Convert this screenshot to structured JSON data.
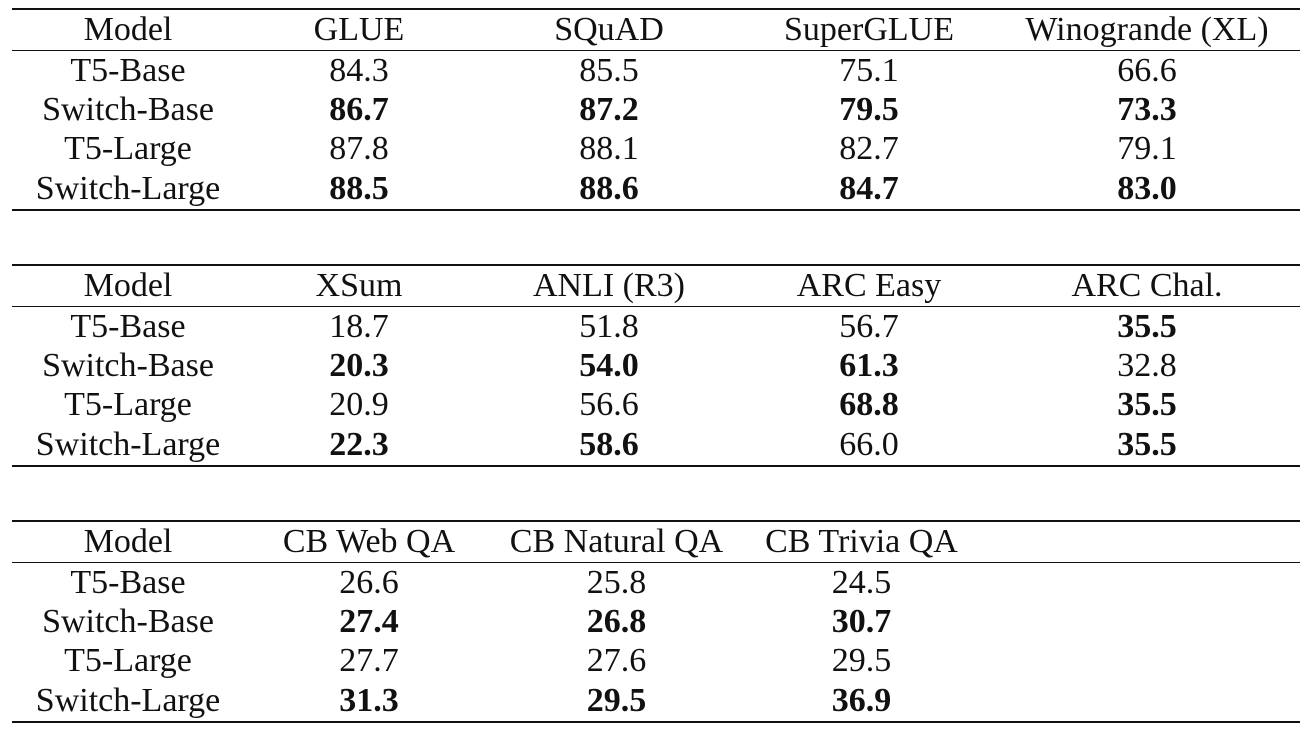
{
  "tables": [
    {
      "headers": [
        "Model",
        "GLUE",
        "SQuAD",
        "SuperGLUE",
        "Winogrande (XL)"
      ],
      "rows": [
        {
          "cells": [
            "T5-Base",
            "84.3",
            "85.5",
            "75.1",
            "66.6"
          ],
          "bold": [
            false,
            false,
            false,
            false,
            false
          ]
        },
        {
          "cells": [
            "Switch-Base",
            "86.7",
            "87.2",
            "79.5",
            "73.3"
          ],
          "bold": [
            false,
            true,
            true,
            true,
            true
          ]
        },
        {
          "cells": [
            "T5-Large",
            "87.8",
            "88.1",
            "82.7",
            "79.1"
          ],
          "bold": [
            false,
            false,
            false,
            false,
            false
          ]
        },
        {
          "cells": [
            "Switch-Large",
            "88.5",
            "88.6",
            "84.7",
            "83.0"
          ],
          "bold": [
            false,
            true,
            true,
            true,
            true
          ]
        }
      ]
    },
    {
      "headers": [
        "Model",
        "XSum",
        "ANLI (R3)",
        "ARC Easy",
        "ARC Chal."
      ],
      "rows": [
        {
          "cells": [
            "T5-Base",
            "18.7",
            "51.8",
            "56.7",
            "35.5"
          ],
          "bold": [
            false,
            false,
            false,
            false,
            true
          ]
        },
        {
          "cells": [
            "Switch-Base",
            "20.3",
            "54.0",
            "61.3",
            "32.8"
          ],
          "bold": [
            false,
            true,
            true,
            true,
            false
          ]
        },
        {
          "cells": [
            "T5-Large",
            "20.9",
            "56.6",
            "68.8",
            "35.5"
          ],
          "bold": [
            false,
            false,
            false,
            true,
            true
          ]
        },
        {
          "cells": [
            "Switch-Large",
            "22.3",
            "58.6",
            "66.0",
            "35.5"
          ],
          "bold": [
            false,
            true,
            true,
            false,
            true
          ]
        }
      ]
    },
    {
      "headers": [
        "Model",
        "CB Web QA",
        "CB Natural QA",
        "CB Trivia QA",
        ""
      ],
      "rows": [
        {
          "cells": [
            "T5-Base",
            "26.6",
            "25.8",
            "24.5",
            ""
          ],
          "bold": [
            false,
            false,
            false,
            false,
            false
          ]
        },
        {
          "cells": [
            "Switch-Base",
            "27.4",
            "26.8",
            "30.7",
            ""
          ],
          "bold": [
            false,
            true,
            true,
            true,
            false
          ]
        },
        {
          "cells": [
            "T5-Large",
            "27.7",
            "27.6",
            "29.5",
            ""
          ],
          "bold": [
            false,
            false,
            false,
            false,
            false
          ]
        },
        {
          "cells": [
            "Switch-Large",
            "31.3",
            "29.5",
            "36.9",
            ""
          ],
          "bold": [
            false,
            true,
            true,
            true,
            false
          ]
        }
      ]
    }
  ]
}
